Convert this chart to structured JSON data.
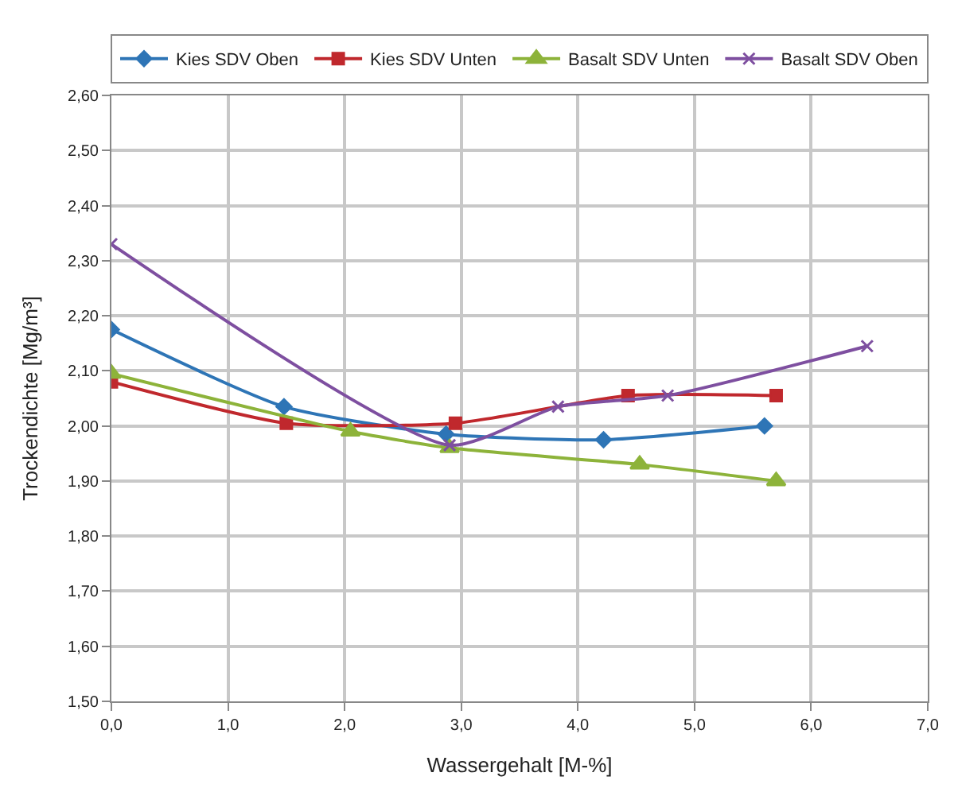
{
  "chart_data": {
    "type": "line",
    "xlabel": "Wassergehalt [M-%]",
    "ylabel": "Trockendichte [Mg/m³]",
    "xlim": [
      0,
      7
    ],
    "xticks": [
      {
        "value": 0,
        "label": "0,0"
      },
      {
        "value": 1,
        "label": "1,0"
      },
      {
        "value": 2,
        "label": "2,0"
      },
      {
        "value": 3,
        "label": "3,0"
      },
      {
        "value": 4,
        "label": "4,0"
      },
      {
        "value": 5,
        "label": "5,0"
      },
      {
        "value": 6,
        "label": "6,0"
      },
      {
        "value": 7,
        "label": "7,0"
      }
    ],
    "ylim": [
      1.5,
      2.6
    ],
    "yticks": [
      {
        "value": 1.5,
        "label": "1,50"
      },
      {
        "value": 1.6,
        "label": "1,60"
      },
      {
        "value": 1.7,
        "label": "1,70"
      },
      {
        "value": 1.8,
        "label": "1,80"
      },
      {
        "value": 1.9,
        "label": "1,90"
      },
      {
        "value": 2.0,
        "label": "2,00"
      },
      {
        "value": 2.1,
        "label": "2,10"
      },
      {
        "value": 2.2,
        "label": "2,20"
      },
      {
        "value": 2.3,
        "label": "2,30"
      },
      {
        "value": 2.4,
        "label": "2,40"
      },
      {
        "value": 2.5,
        "label": "2,50"
      },
      {
        "value": 2.6,
        "label": "2,60"
      }
    ],
    "grid": true,
    "legend": "top",
    "line_style": "solid",
    "series": [
      {
        "name": "Kies SDV Oben",
        "color": "#2e75b6",
        "marker": "diamond",
        "x": [
          0,
          1.48,
          2.87,
          4.22,
          5.6
        ],
        "values": [
          2.175,
          2.035,
          1.985,
          1.975,
          2.0
        ]
      },
      {
        "name": "Kies SDV Unten",
        "color": "#c0282d",
        "marker": "square",
        "x": [
          0,
          1.5,
          2.95,
          4.43,
          5.7
        ],
        "values": [
          2.08,
          2.005,
          2.005,
          2.055,
          2.055
        ]
      },
      {
        "name": "Basalt SDV Unten",
        "color": "#8db33a",
        "marker": "triangle",
        "x": [
          0,
          2.05,
          2.9,
          4.53,
          5.7
        ],
        "values": [
          2.095,
          1.99,
          1.96,
          1.93,
          1.9
        ]
      },
      {
        "name": "Basalt SDV Oben",
        "color": "#7e4fa0",
        "marker": "cross",
        "x": [
          0,
          2.9,
          3.83,
          4.77,
          6.48
        ],
        "values": [
          2.33,
          1.965,
          2.035,
          2.055,
          2.145
        ]
      }
    ]
  }
}
